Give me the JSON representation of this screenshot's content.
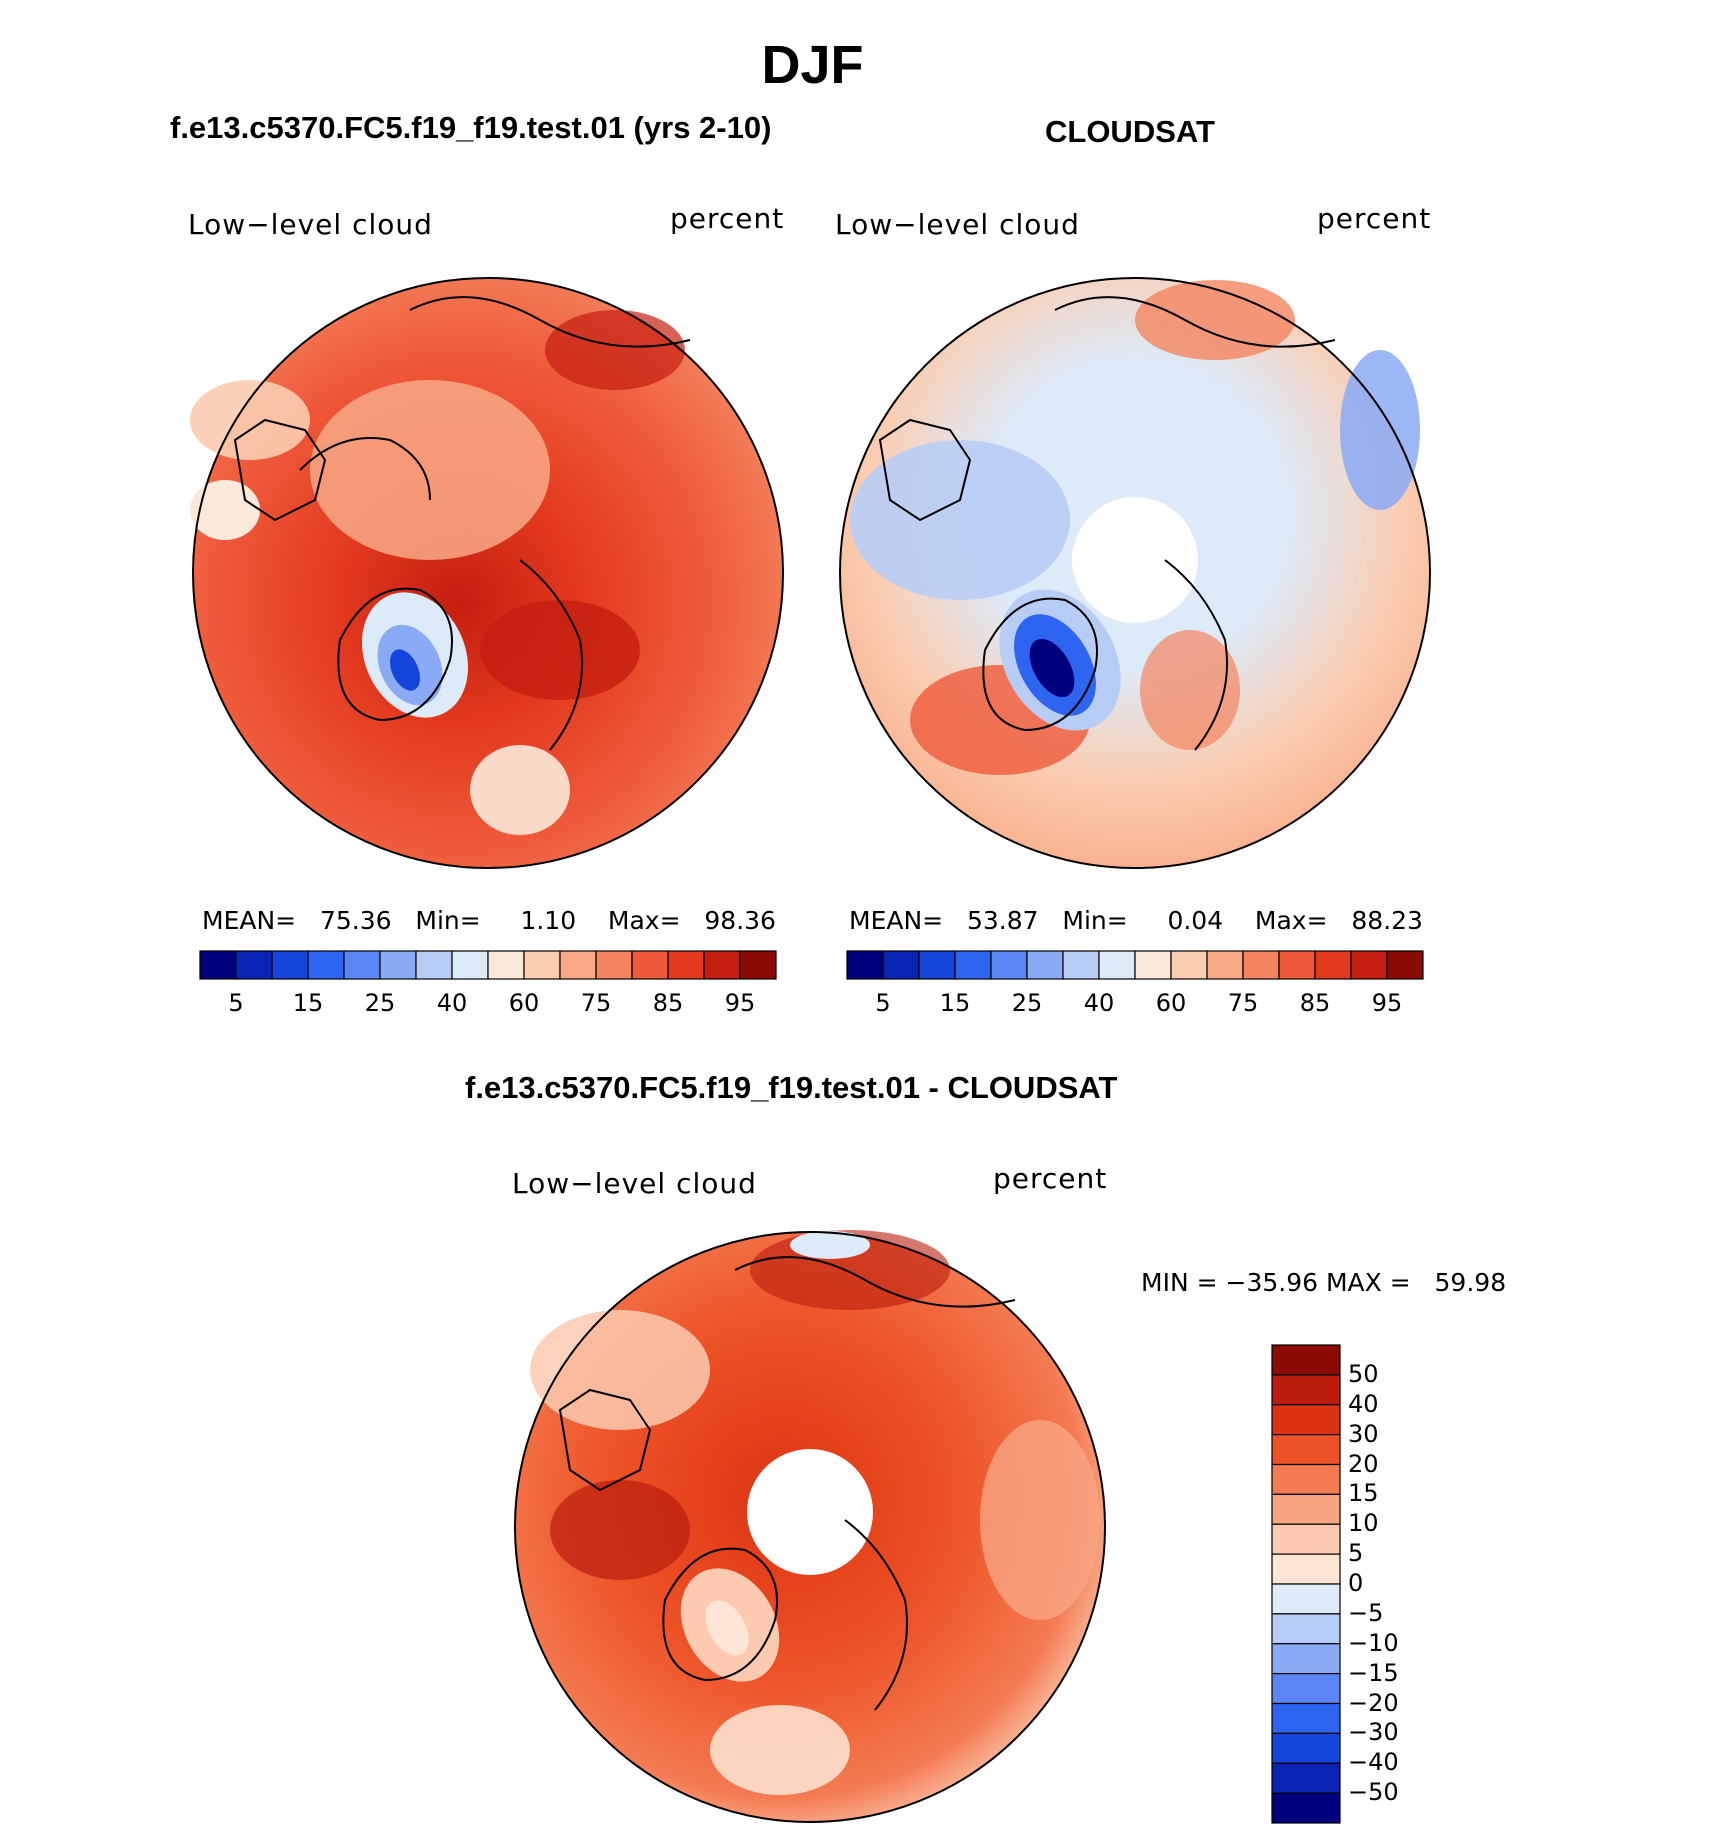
{
  "figure": {
    "season": "DJF"
  },
  "panels": [
    {
      "id": "model",
      "header": "f.e13.c5370.FC5.f19_f19.test.01 (yrs 2-10)",
      "left_label": "Low−level cloud",
      "right_label": "percent",
      "stats": {
        "mean_label": "MEAN=",
        "mean": "75.36",
        "min_label": "Min=",
        "min": "1.10",
        "max_label": "Max=",
        "max": "98.36"
      }
    },
    {
      "id": "obs",
      "header": "CLOUDSAT",
      "left_label": "Low−level cloud",
      "right_label": "percent",
      "stats": {
        "mean_label": "MEAN=",
        "mean": "53.87",
        "min_label": "Min=",
        "min": "0.04",
        "max_label": "Max=",
        "max": "88.23"
      }
    },
    {
      "id": "diff",
      "header": "f.e13.c5370.FC5.f19_f19.test.01 - CLOUDSAT",
      "left_label": "Low−level cloud",
      "right_label": "percent",
      "stats": {
        "min_label": "MIN =",
        "min": "−35.96",
        "max_label": "MAX =",
        "max": "59.98"
      }
    }
  ],
  "colorbars": {
    "absolute": {
      "colors": [
        "#00007f",
        "#0a23b5",
        "#1446dc",
        "#2d64f0",
        "#5a87f5",
        "#8aaaf5",
        "#b8cdf5",
        "#ddeaf8",
        "#fde9d9",
        "#fbcdb1",
        "#f8a986",
        "#f4845f",
        "#ef5a3a",
        "#e33a1e",
        "#c41e10",
        "#8c0a05"
      ],
      "tick_labels": [
        "5",
        "15",
        "25",
        "40",
        "60",
        "75",
        "85",
        "95"
      ]
    },
    "difference": {
      "colors": [
        "#8c0a05",
        "#bb1c0e",
        "#dc3412",
        "#ee5327",
        "#f47b52",
        "#f8a582",
        "#fbcab0",
        "#fde6d6",
        "#ddeaf8",
        "#b8cdf5",
        "#8aaaf5",
        "#5a87f5",
        "#2d64f0",
        "#1446dc",
        "#0a23b5",
        "#00007f"
      ],
      "tick_labels": [
        "50",
        "40",
        "30",
        "20",
        "15",
        "10",
        "5",
        "0",
        "−5",
        "−10",
        "−15",
        "−20",
        "−30",
        "−40",
        "−50"
      ]
    }
  }
}
